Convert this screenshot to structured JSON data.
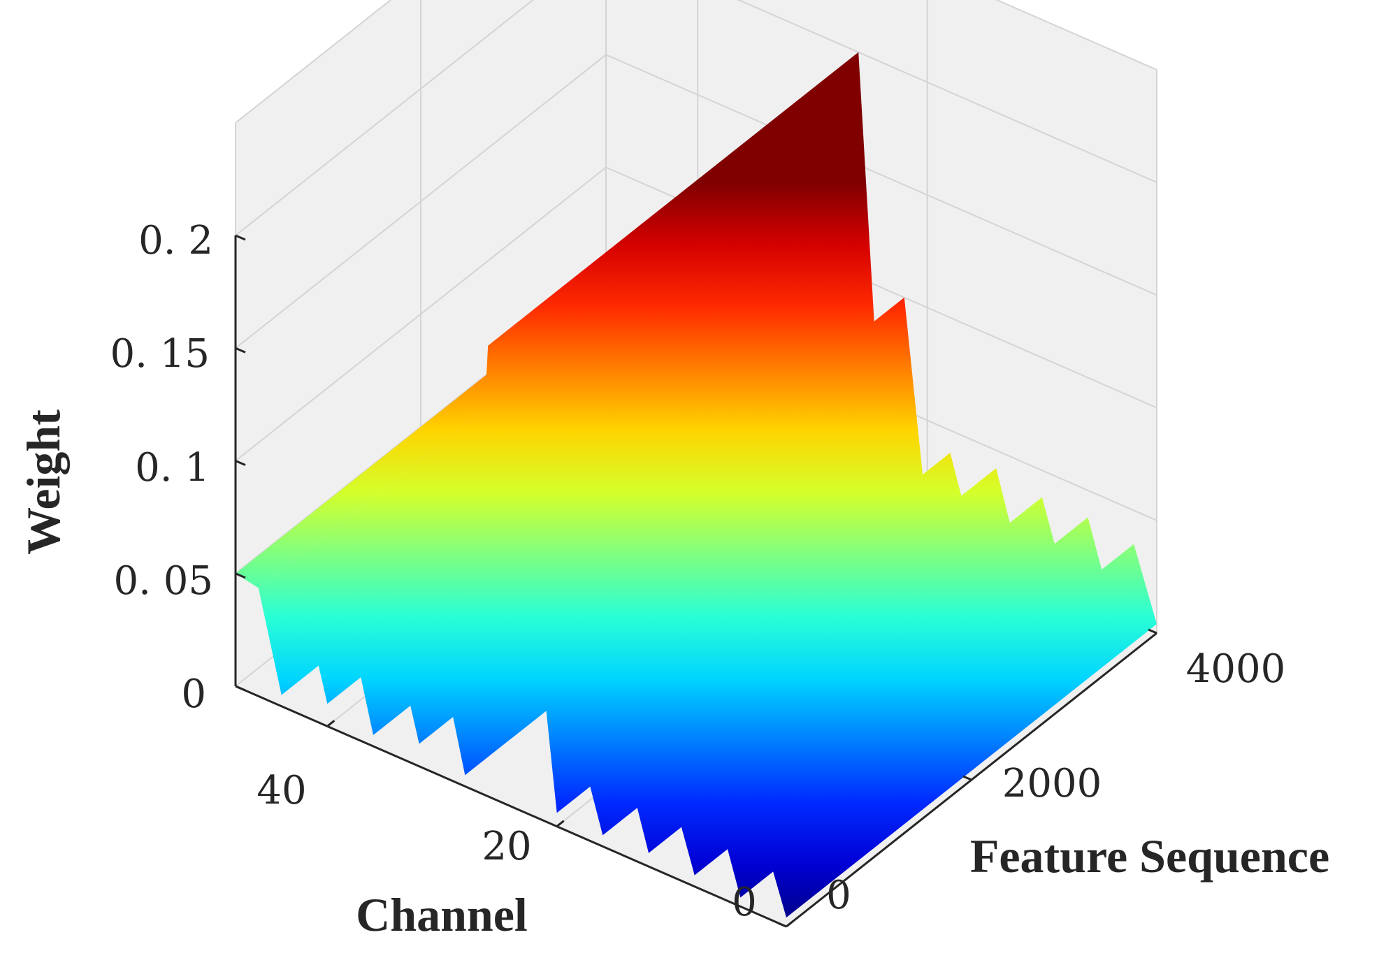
{
  "chart_data": {
    "type": "surface",
    "title": "",
    "xlabel": "Channel",
    "ylabel": "Feature Sequence",
    "zlabel": "Weight",
    "xlim": [
      0,
      48
    ],
    "ylim": [
      0,
      4000
    ],
    "zlim": [
      0,
      0.2
    ],
    "x_ticks": [
      "0",
      "20",
      "40"
    ],
    "y_ticks": [
      "0",
      "2000",
      "4000"
    ],
    "z_ticks": [
      "0",
      "0. 05",
      "0. 1",
      "0. 15",
      "0. 2"
    ],
    "grid": true,
    "colormap": "jet",
    "colormap_range": [
      0,
      0.2
    ],
    "series": [
      {
        "channels": [
          0,
          2,
          4,
          6,
          8,
          10,
          12,
          14,
          16,
          18,
          20,
          22,
          24,
          26,
          28,
          30,
          32,
          34,
          36,
          38,
          40,
          42,
          44,
          46,
          48
        ],
        "weights": [
          0.004,
          0.035,
          0.004,
          0.038,
          0.005,
          0.038,
          0.006,
          0.042,
          0.005,
          0.04,
          0.006,
          0.1,
          0.03,
          0.2,
          0.005,
          0.05,
          0.01,
          0.05,
          0.005,
          0.048,
          0.01,
          0.05,
          0.005,
          0.048,
          0.05
        ]
      }
    ]
  }
}
